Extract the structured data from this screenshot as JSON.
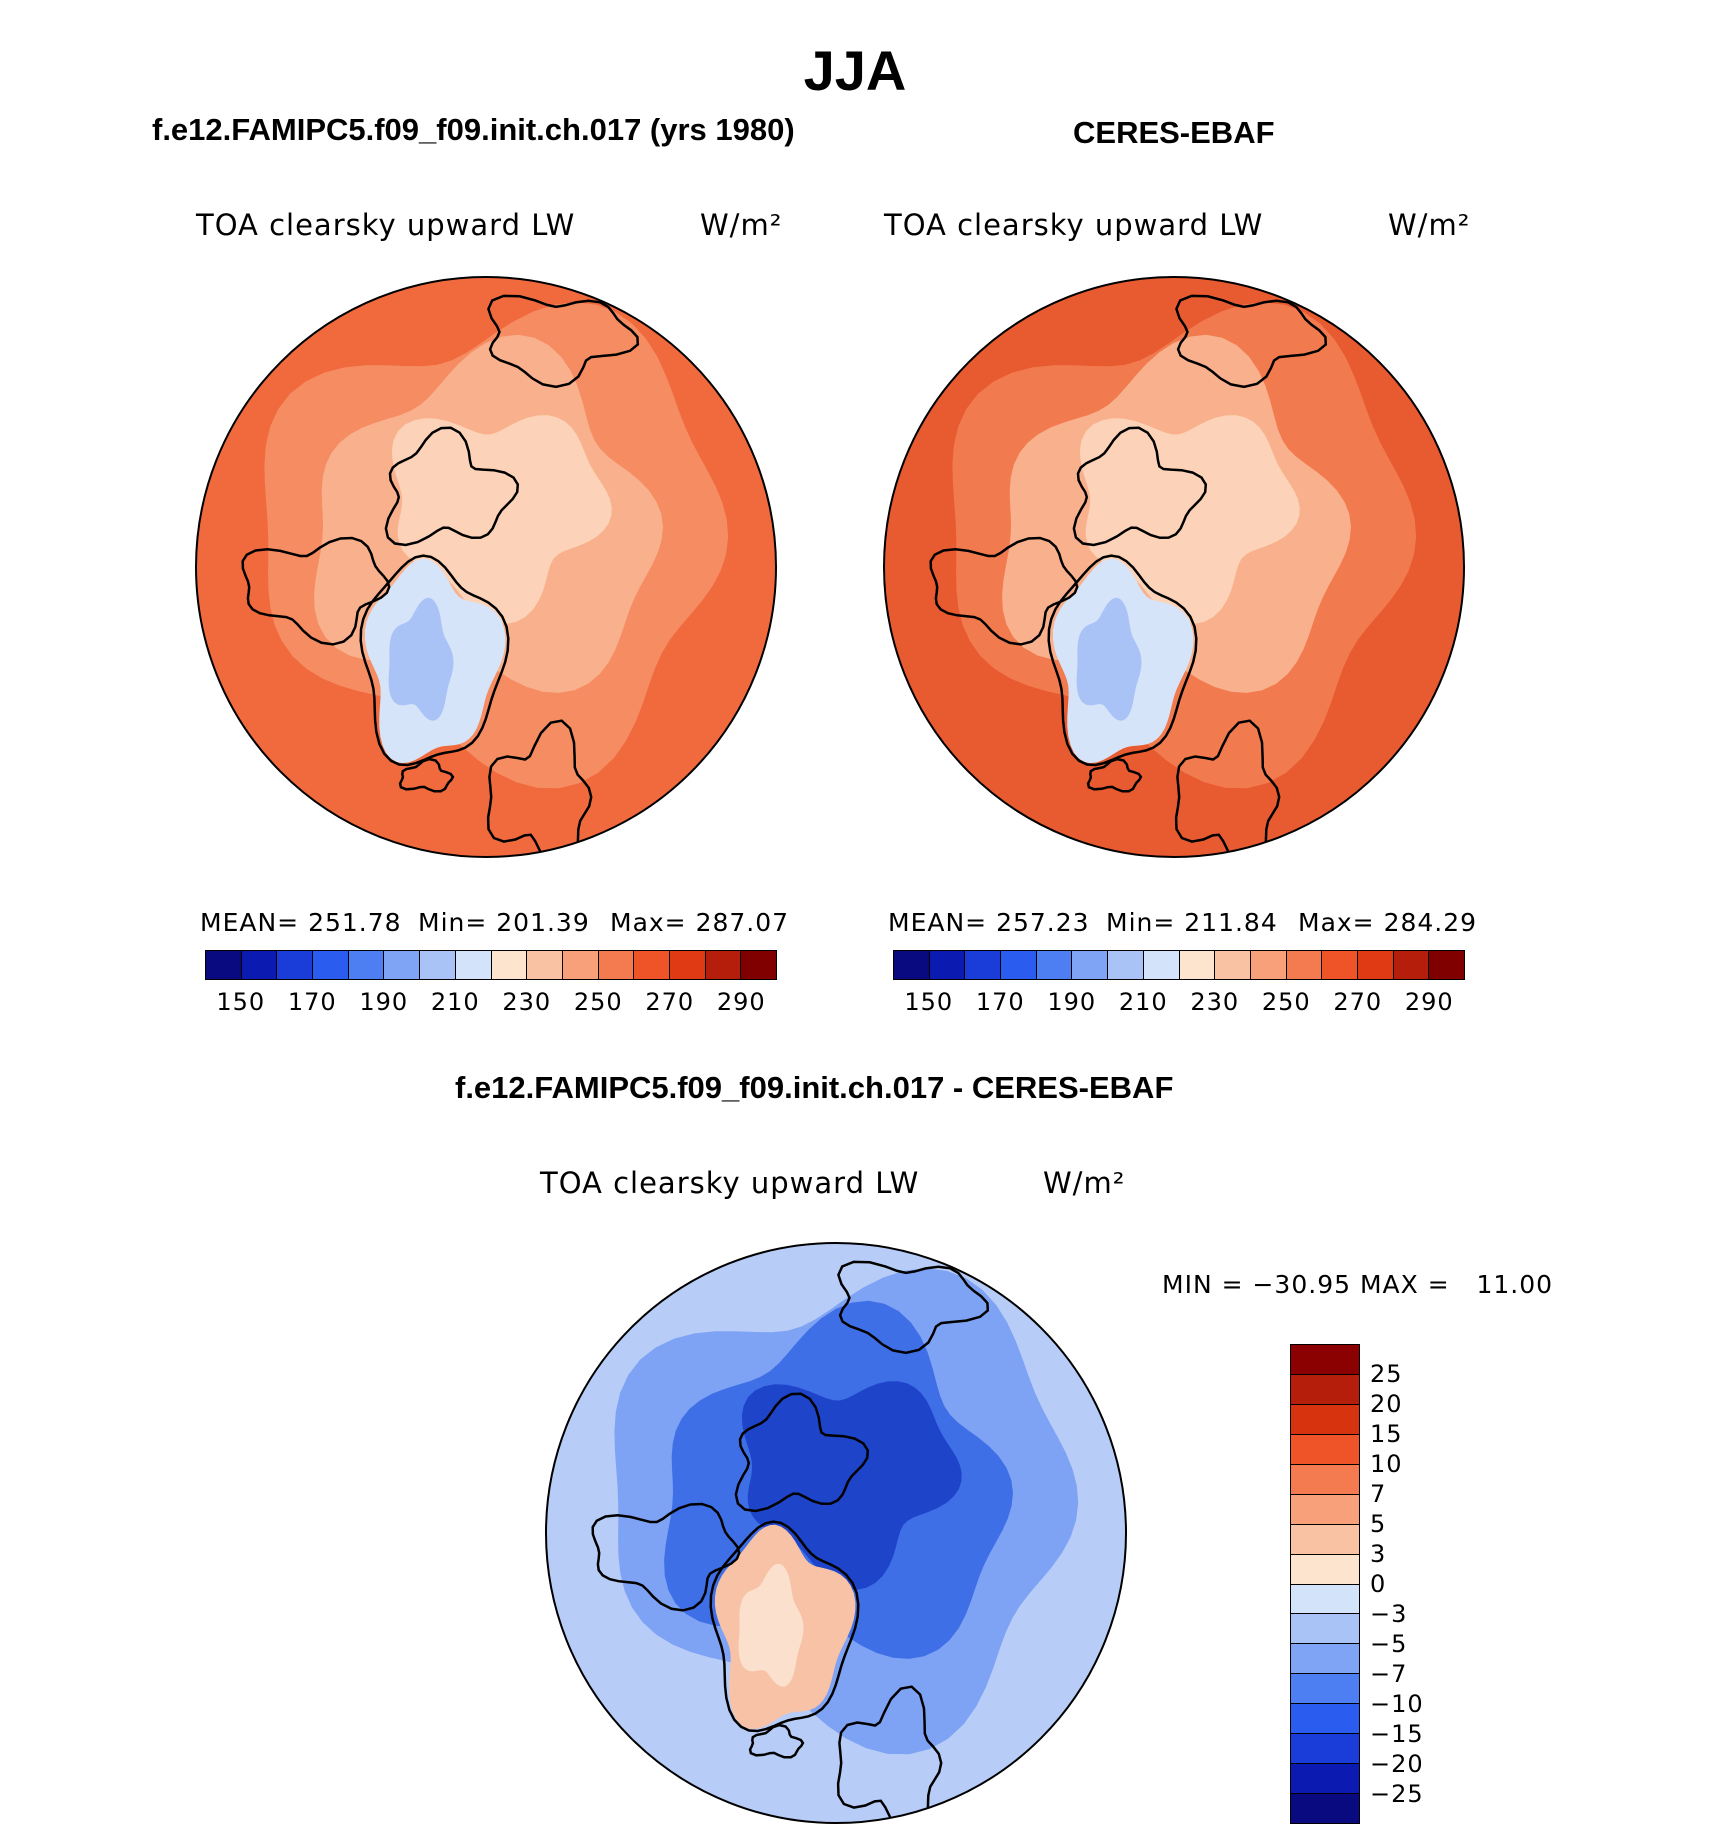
{
  "title": "JJA",
  "chart_data": [
    {
      "type": "heatmap",
      "panel": "model",
      "title": "f.e12.FAMIPC5.f09_f09.init.ch.017 (yrs 1980)",
      "variable": "TOA clearsky upward LW",
      "units": "W/m²",
      "stats": {
        "mean_label": "MEAN= 251.78",
        "min_label": "Min= 201.39",
        "max_label": "Max= 287.07"
      },
      "mean": 251.78,
      "min": 201.39,
      "max": 287.07,
      "colorbar": {
        "tick_labels": [
          "150",
          "170",
          "190",
          "210",
          "230",
          "250",
          "270",
          "290"
        ],
        "colors": [
          "#0a0a80",
          "#0b1ab0",
          "#1a3cd8",
          "#2b5cf0",
          "#4d7ff2",
          "#7fa3f5",
          "#a9c3f7",
          "#d3e3f9",
          "#fde4cf",
          "#f9c2a3",
          "#f7a07a",
          "#f47a50",
          "#ef5428",
          "#e03a14",
          "#b51e0a",
          "#800000"
        ]
      },
      "projection": "north polar stereographic",
      "fill": [
        "#f06a3e",
        "#f58c62",
        "#f9b08d",
        "#fcd3b8",
        "#d6e4fa",
        "#a9c3f7"
      ]
    },
    {
      "type": "heatmap",
      "panel": "observations",
      "title": "CERES-EBAF",
      "variable": "TOA clearsky upward LW",
      "units": "W/m²",
      "stats": {
        "mean_label": "MEAN= 257.23",
        "min_label": "Min= 211.84",
        "max_label": "Max= 284.29"
      },
      "mean": 257.23,
      "min": 211.84,
      "max": 284.29,
      "colorbar": {
        "tick_labels": [
          "150",
          "170",
          "190",
          "210",
          "230",
          "250",
          "270",
          "290"
        ],
        "colors": [
          "#0a0a80",
          "#0b1ab0",
          "#1a3cd8",
          "#2b5cf0",
          "#4d7ff2",
          "#7fa3f5",
          "#a9c3f7",
          "#d3e3f9",
          "#fde4cf",
          "#f9c2a3",
          "#f7a07a",
          "#f47a50",
          "#ef5428",
          "#e03a14",
          "#b51e0a",
          "#800000"
        ]
      },
      "projection": "north polar stereographic",
      "fill": [
        "#e85a30",
        "#f27a4f",
        "#f9b08d",
        "#fcd3b8",
        "#d6e4fa",
        "#a9c3f7"
      ]
    },
    {
      "type": "heatmap",
      "panel": "difference",
      "title": "f.e12.FAMIPC5.f09_f09.init.ch.017 - CERES-EBAF",
      "variable": "TOA clearsky upward LW",
      "units": "W/m²",
      "stats": {
        "label": "MIN = −30.95 MAX =   11.00"
      },
      "min": -30.95,
      "max": 11.0,
      "colorbar": {
        "tick_labels": [
          "25",
          "20",
          "15",
          "10",
          "7",
          "5",
          "3",
          "0",
          "−3",
          "−5",
          "−7",
          "−10",
          "−15",
          "−20",
          "−25"
        ],
        "colors": [
          "#8b0000",
          "#b51e0a",
          "#d8330f",
          "#ef5428",
          "#f47a50",
          "#f7a07a",
          "#f9c2a3",
          "#fde4cf",
          "#d3e3f9",
          "#a9c3f7",
          "#7fa3f5",
          "#4d7ff2",
          "#2b5cf0",
          "#1a3cd8",
          "#0b1ab0",
          "#0a0a80"
        ]
      },
      "projection": "north polar stereographic",
      "fill": [
        "#b7cdf8",
        "#7ea2f4",
        "#3f6fe6",
        "#1d44c9",
        "#f7c2a6",
        "#fbe0cd"
      ]
    }
  ]
}
